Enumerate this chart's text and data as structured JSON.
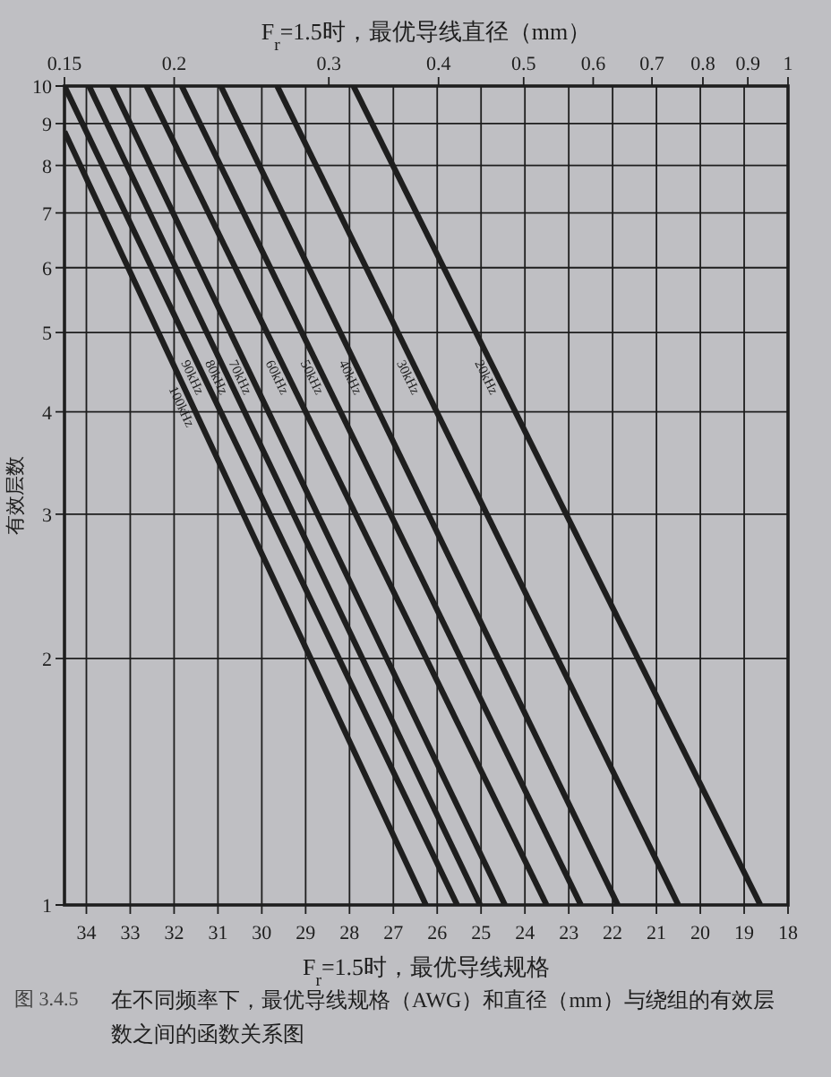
{
  "chart_data": {
    "type": "line",
    "xlabel": "F$_{r}$=1.5时，最优导线直径（mm）",
    "x2label": "F$_{r}$=1.5时，最优导线规格",
    "ylabel": "有效层数",
    "annotations": [
      "图 3.4.5",
      "在不同频率下，最优导线规格（AWG）和直径（mm）与绕组的有效层数之间的函数关系图"
    ],
    "xlim": [
      0.15,
      1
    ],
    "xticks": [
      0.15,
      0.2,
      0.3,
      0.4,
      0.5,
      0.6,
      0.7,
      0.8,
      0.9,
      1
    ],
    "x2lim": [
      34.5,
      18
    ],
    "x2ticks": [
      34,
      33,
      32,
      31,
      30,
      29,
      28,
      27,
      26,
      25,
      24,
      23,
      22,
      21,
      20,
      19,
      18
    ],
    "ylim": [
      1,
      10
    ],
    "yticks": [
      1,
      2,
      3,
      4,
      5,
      6,
      7,
      8,
      9,
      10
    ],
    "log": "xy",
    "grid": true,
    "series": [
      {
        "name": "20kHz",
        "color": "#1e1e1e",
        "x": [
          0.32,
          0.93
        ],
        "values": [
          10,
          1
        ]
      },
      {
        "name": "30kHz",
        "color": "#1e1e1e",
        "x": [
          0.262,
          0.75
        ],
        "values": [
          10,
          1
        ]
      },
      {
        "name": "40kHz",
        "color": "#1e1e1e",
        "x": [
          0.226,
          0.64
        ],
        "values": [
          10,
          1
        ]
      },
      {
        "name": "50kHz",
        "color": "#1e1e1e",
        "x": [
          0.204,
          0.581
        ],
        "values": [
          10,
          1
        ]
      },
      {
        "name": "60kHz",
        "color": "#1e1e1e",
        "x": [
          0.186,
          0.531
        ],
        "values": [
          10,
          1
        ]
      },
      {
        "name": "70kHz",
        "color": "#1e1e1e",
        "x": [
          0.17,
          0.476
        ],
        "values": [
          10,
          1
        ]
      },
      {
        "name": "80kHz",
        "color": "#1e1e1e",
        "x": [
          0.16,
          0.446
        ],
        "values": [
          10,
          1
        ]
      },
      {
        "name": "90kHz",
        "color": "#1e1e1e",
        "x": [
          0.15,
          0.42
        ],
        "values": [
          10,
          1
        ]
      },
      {
        "name": "100kHz",
        "color": "#1e1e1e",
        "x": [
          0.15,
          0.387
        ],
        "values": [
          8.8,
          1
        ]
      }
    ]
  }
}
